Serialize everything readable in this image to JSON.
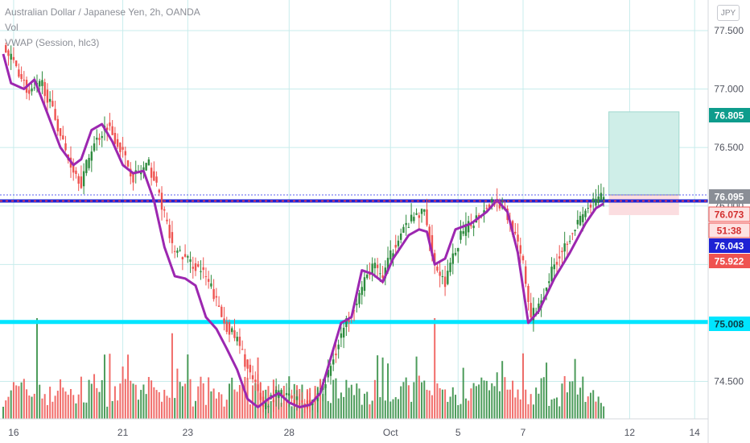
{
  "legend": {
    "symbol_line": "Australian Dollar / Japanese Yen, 2h, OANDA",
    "vol_line": "Vol",
    "vwap_line": "VWAP (Session, hlc3)"
  },
  "currency_button": "JPY",
  "colors": {
    "up": "#26a69a",
    "up_dark": "#2e8b3e",
    "down": "#ef5350",
    "vwap": "#9c27b0",
    "cyan_line": "#00e5ff",
    "blue_line": "#1e22d4",
    "grid": "#c8ecec",
    "profit_zone": "#cfeee8",
    "loss_zone": "#fbdde0"
  },
  "chart_data": {
    "type": "candlestick",
    "symbol": "Australian Dollar / Japanese Yen",
    "interval": "2h",
    "source": "OANDA",
    "y_axis": {
      "ticks": [
        77.5,
        77.0,
        76.5,
        76.0,
        75.5,
        75.0,
        74.5
      ],
      "ylim": [
        74.18,
        77.72
      ]
    },
    "x_axis": {
      "ticks": [
        "16",
        "21",
        "23",
        "28",
        "Oct",
        "5",
        "7",
        "12",
        "14"
      ]
    },
    "grid": true,
    "price_tags": [
      {
        "label": "76.805",
        "value": 76.805,
        "kind": "target"
      },
      {
        "label": "76.095",
        "value": 76.095,
        "kind": "entry"
      },
      {
        "label": "76.073",
        "value": 76.073,
        "kind": "last"
      },
      {
        "label": "51:38",
        "value": 75.99,
        "kind": "countdown"
      },
      {
        "label": "76.043",
        "value": 76.043,
        "kind": "blue-line"
      },
      {
        "label": "75.922",
        "value": 75.922,
        "kind": "stop"
      },
      {
        "label": "75.008",
        "value": 75.008,
        "kind": "cyan-line"
      }
    ],
    "horizontal_lines": [
      {
        "value": 75.008,
        "color": "cyan"
      },
      {
        "value": 76.043,
        "color": "blue"
      }
    ],
    "position": {
      "entry": 76.095,
      "target": 76.805,
      "stop": 75.922
    },
    "price_path": [
      {
        "t": 0,
        "p": 77.35
      },
      {
        "t": 5,
        "p": 77.2
      },
      {
        "t": 10,
        "p": 76.95
      },
      {
        "t": 15,
        "p": 77.05
      },
      {
        "t": 20,
        "p": 76.75
      },
      {
        "t": 25,
        "p": 76.4
      },
      {
        "t": 30,
        "p": 76.2
      },
      {
        "t": 34,
        "p": 76.5
      },
      {
        "t": 40,
        "p": 76.7
      },
      {
        "t": 45,
        "p": 76.5
      },
      {
        "t": 50,
        "p": 76.25
      },
      {
        "t": 56,
        "p": 76.35
      },
      {
        "t": 60,
        "p": 76.1
      },
      {
        "t": 65,
        "p": 75.65
      },
      {
        "t": 70,
        "p": 75.55
      },
      {
        "t": 76,
        "p": 75.45
      },
      {
        "t": 80,
        "p": 75.3
      },
      {
        "t": 85,
        "p": 75.0
      },
      {
        "t": 90,
        "p": 74.85
      },
      {
        "t": 95,
        "p": 74.55
      },
      {
        "t": 100,
        "p": 74.3
      },
      {
        "t": 106,
        "p": 74.4
      },
      {
        "t": 112,
        "p": 74.35
      },
      {
        "t": 118,
        "p": 74.3
      },
      {
        "t": 124,
        "p": 74.5
      },
      {
        "t": 130,
        "p": 74.9
      },
      {
        "t": 136,
        "p": 75.2
      },
      {
        "t": 142,
        "p": 75.5
      },
      {
        "t": 146,
        "p": 75.4
      },
      {
        "t": 152,
        "p": 75.75
      },
      {
        "t": 158,
        "p": 75.9
      },
      {
        "t": 162,
        "p": 75.95
      },
      {
        "t": 166,
        "p": 75.5
      },
      {
        "t": 170,
        "p": 75.35
      },
      {
        "t": 176,
        "p": 75.75
      },
      {
        "t": 182,
        "p": 75.9
      },
      {
        "t": 188,
        "p": 76.05
      },
      {
        "t": 192,
        "p": 76.0
      },
      {
        "t": 196,
        "p": 75.8
      },
      {
        "t": 200,
        "p": 75.5
      },
      {
        "t": 203,
        "p": 75.05
      },
      {
        "t": 206,
        "p": 75.15
      },
      {
        "t": 212,
        "p": 75.5
      },
      {
        "t": 218,
        "p": 75.75
      },
      {
        "t": 224,
        "p": 75.95
      },
      {
        "t": 228,
        "p": 76.05
      },
      {
        "t": 231,
        "p": 76.08
      }
    ],
    "vwap_path": [
      {
        "t": 0,
        "p": 77.3
      },
      {
        "t": 3,
        "p": 77.05
      },
      {
        "t": 8,
        "p": 77.0
      },
      {
        "t": 12,
        "p": 77.08
      },
      {
        "t": 16,
        "p": 76.85
      },
      {
        "t": 22,
        "p": 76.5
      },
      {
        "t": 27,
        "p": 76.35
      },
      {
        "t": 30,
        "p": 76.4
      },
      {
        "t": 34,
        "p": 76.65
      },
      {
        "t": 38,
        "p": 76.7
      },
      {
        "t": 42,
        "p": 76.55
      },
      {
        "t": 46,
        "p": 76.35
      },
      {
        "t": 50,
        "p": 76.28
      },
      {
        "t": 54,
        "p": 76.3
      },
      {
        "t": 58,
        "p": 76.05
      },
      {
        "t": 62,
        "p": 75.65
      },
      {
        "t": 66,
        "p": 75.4
      },
      {
        "t": 70,
        "p": 75.38
      },
      {
        "t": 74,
        "p": 75.32
      },
      {
        "t": 78,
        "p": 75.05
      },
      {
        "t": 82,
        "p": 74.95
      },
      {
        "t": 86,
        "p": 74.78
      },
      {
        "t": 90,
        "p": 74.6
      },
      {
        "t": 94,
        "p": 74.35
      },
      {
        "t": 98,
        "p": 74.28
      },
      {
        "t": 102,
        "p": 74.35
      },
      {
        "t": 106,
        "p": 74.4
      },
      {
        "t": 110,
        "p": 74.32
      },
      {
        "t": 114,
        "p": 74.28
      },
      {
        "t": 118,
        "p": 74.3
      },
      {
        "t": 122,
        "p": 74.4
      },
      {
        "t": 126,
        "p": 74.7
      },
      {
        "t": 130,
        "p": 75.0
      },
      {
        "t": 134,
        "p": 75.05
      },
      {
        "t": 138,
        "p": 75.45
      },
      {
        "t": 142,
        "p": 75.42
      },
      {
        "t": 146,
        "p": 75.35
      },
      {
        "t": 150,
        "p": 75.55
      },
      {
        "t": 156,
        "p": 75.75
      },
      {
        "t": 160,
        "p": 75.8
      },
      {
        "t": 163,
        "p": 75.78
      },
      {
        "t": 166,
        "p": 75.5
      },
      {
        "t": 170,
        "p": 75.55
      },
      {
        "t": 174,
        "p": 75.8
      },
      {
        "t": 180,
        "p": 75.85
      },
      {
        "t": 186,
        "p": 75.95
      },
      {
        "t": 190,
        "p": 76.05
      },
      {
        "t": 194,
        "p": 75.95
      },
      {
        "t": 198,
        "p": 75.6
      },
      {
        "t": 202,
        "p": 75.0
      },
      {
        "t": 206,
        "p": 75.1
      },
      {
        "t": 212,
        "p": 75.38
      },
      {
        "t": 218,
        "p": 75.6
      },
      {
        "t": 224,
        "p": 75.85
      },
      {
        "t": 228,
        "p": 75.98
      },
      {
        "t": 231,
        "p": 76.02
      }
    ],
    "volume_spikes": [
      {
        "t": 13,
        "v": 1.0
      },
      {
        "t": 65,
        "v": 0.85
      },
      {
        "t": 166,
        "v": 1.0
      },
      {
        "t": 200,
        "v": 0.65
      },
      {
        "t": 148,
        "v": 0.55
      }
    ]
  }
}
